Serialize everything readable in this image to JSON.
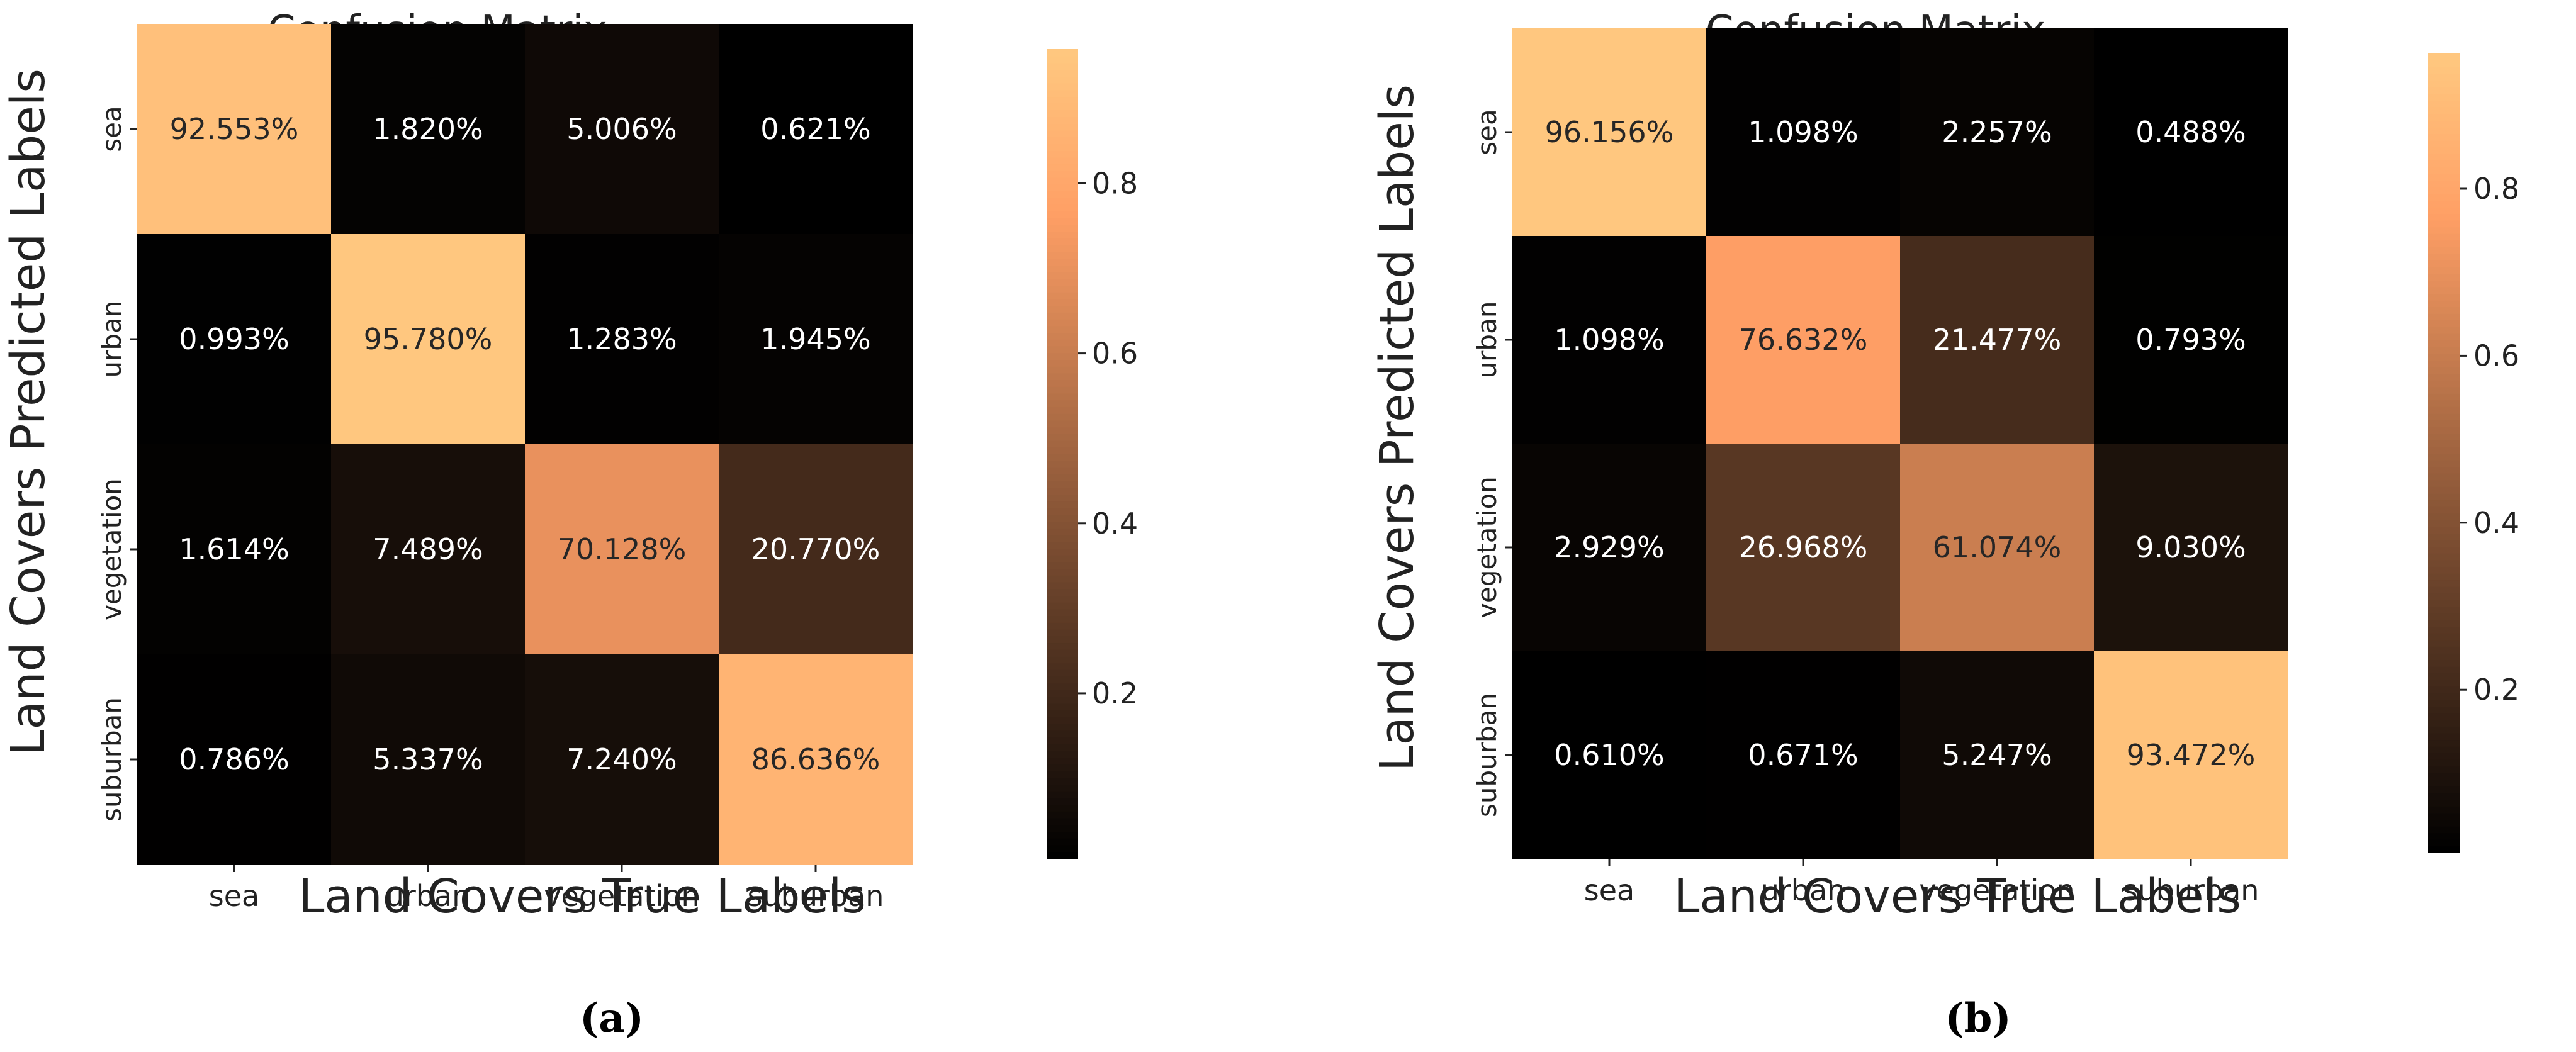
{
  "chart_data": [
    {
      "type": "heatmap",
      "panel_label": "a",
      "title": "Confusion Matrix",
      "xlabel": "Land Covers True Labels",
      "ylabel": "Land Covers Predicted Labels",
      "x_categories": [
        "sea",
        "urban",
        "vegetation",
        "suburban"
      ],
      "y_categories": [
        "sea",
        "urban",
        "vegetation",
        "suburban"
      ],
      "values": [
        [
          92.553,
          1.82,
          5.006,
          0.621
        ],
        [
          0.993,
          95.78,
          1.283,
          1.945
        ],
        [
          1.614,
          7.489,
          70.128,
          20.77
        ],
        [
          0.786,
          5.337,
          7.24,
          86.636
        ]
      ],
      "cell_labels": [
        [
          "92.553%",
          "1.820%",
          "5.006%",
          "0.621%"
        ],
        [
          "0.993%",
          "95.780%",
          "1.283%",
          "1.945%"
        ],
        [
          "1.614%",
          "7.489%",
          "70.128%",
          "20.770%"
        ],
        [
          "0.786%",
          "5.337%",
          "7.240%",
          "86.636%"
        ]
      ],
      "colorbar": {
        "range": [
          0.006,
          0.958
        ],
        "ticks": [
          0.2,
          0.4,
          0.6,
          0.8
        ],
        "tick_labels": [
          "0.2",
          "0.4",
          "0.6",
          "0.8"
        ]
      },
      "colormap": "copper"
    },
    {
      "type": "heatmap",
      "panel_label": "b",
      "title": "Confusion Matrix",
      "xlabel": "Land Covers True Labels",
      "ylabel": "Land Covers Predicted Labels",
      "x_categories": [
        "sea",
        "urban",
        "vegetation",
        "suburban"
      ],
      "y_categories": [
        "sea",
        "urban",
        "vegetation",
        "suburban"
      ],
      "values": [
        [
          96.156,
          1.098,
          2.257,
          0.488
        ],
        [
          1.098,
          76.632,
          21.477,
          0.793
        ],
        [
          2.929,
          26.968,
          61.074,
          9.03
        ],
        [
          0.61,
          0.671,
          5.247,
          93.472
        ]
      ],
      "cell_labels": [
        [
          "96.156%",
          "1.098%",
          "2.257%",
          "0.488%"
        ],
        [
          "1.098%",
          "76.632%",
          "21.477%",
          "0.793%"
        ],
        [
          "2.929%",
          "26.968%",
          "61.074%",
          "9.030%"
        ],
        [
          "0.610%",
          "0.671%",
          "5.247%",
          "93.472%"
        ]
      ],
      "colorbar": {
        "range": [
          0.005,
          0.962
        ],
        "ticks": [
          0.2,
          0.4,
          0.6,
          0.8
        ],
        "tick_labels": [
          "0.2",
          "0.4",
          "0.6",
          "0.8"
        ]
      },
      "colormap": "copper"
    }
  ],
  "captions": {
    "a": "(a)",
    "b": "(b)"
  },
  "colors": {
    "copper_low": "#000000",
    "copper_high": "#ffc77f",
    "background": "#ffffff"
  }
}
